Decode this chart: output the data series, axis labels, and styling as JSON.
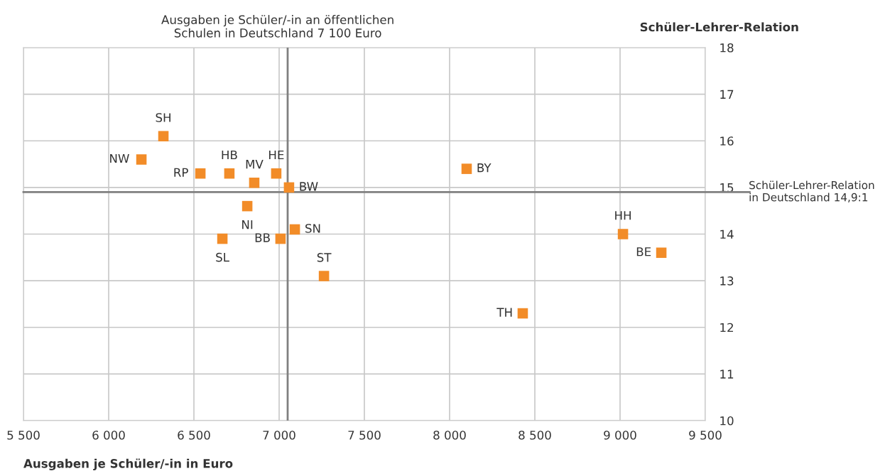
{
  "chart_data": {
    "type": "scatter",
    "xlabel": "Ausgaben je Schüler/-in in Euro",
    "ylabel": "Schüler-Lehrer-Relation",
    "x": [
      6321,
      6192,
      6538,
      6708,
      6983,
      6854,
      7058,
      8100,
      6813,
      7092,
      7008,
      6667,
      7263,
      8429,
      9017,
      9242
    ],
    "series": [
      {
        "color": "#f28c28",
        "values": [
          16.1,
          15.6,
          15.3,
          15.3,
          15.3,
          15.1,
          15.0,
          15.4,
          14.6,
          14.1,
          13.9,
          13.9,
          13.1,
          12.3,
          14.0,
          13.6
        ]
      }
    ],
    "annotations": [
      {
        "text": "SH",
        "x": 6321,
        "y": 16.1
      },
      {
        "text": "NW",
        "x": 6192,
        "y": 15.6
      },
      {
        "text": "RP",
        "x": 6538,
        "y": 15.3
      },
      {
        "text": "HB",
        "x": 6708,
        "y": 15.3
      },
      {
        "text": "HE",
        "x": 6983,
        "y": 15.3
      },
      {
        "text": "MV",
        "x": 6854,
        "y": 15.1
      },
      {
        "text": "BW",
        "x": 7058,
        "y": 15.0
      },
      {
        "text": "BY",
        "x": 8100,
        "y": 15.4
      },
      {
        "text": "NI",
        "x": 6813,
        "y": 14.6
      },
      {
        "text": "SN",
        "x": 7092,
        "y": 14.1
      },
      {
        "text": "BB",
        "x": 7008,
        "y": 13.9
      },
      {
        "text": "SL",
        "x": 6667,
        "y": 13.9
      },
      {
        "text": "ST",
        "x": 7263,
        "y": 13.1
      },
      {
        "text": "TH",
        "x": 8429,
        "y": 12.3
      },
      {
        "text": "HH",
        "x": 9017,
        "y": 14.0
      },
      {
        "text": "BE",
        "x": 9242,
        "y": 13.6
      }
    ],
    "ref_lines": [
      {
        "axis": "x",
        "value": 7050,
        "label": "Ausgaben je Schüler/-in an öffentlichen\nSchulen in Deutschland 7 100 Euro",
        "color": "#808080"
      },
      {
        "axis": "y",
        "value": 14.9,
        "label": "Schüler-Lehrer-Relation\nin Deutschland 14,9:1",
        "color": "#808080"
      }
    ],
    "xlim": [
      5500,
      9500
    ],
    "ylim": [
      10,
      18
    ],
    "xticks": [
      {
        "value": 5500,
        "label": "5 500"
      },
      {
        "value": 6000,
        "label": "6 000"
      },
      {
        "value": 6500,
        "label": "6 500"
      },
      {
        "value": 7000,
        "label": "7 000"
      },
      {
        "value": 7500,
        "label": "7 500"
      },
      {
        "value": 8000,
        "label": "8 000"
      },
      {
        "value": 8500,
        "label": "8 500"
      },
      {
        "value": 9000,
        "label": "9 000"
      },
      {
        "value": 9500,
        "label": "9 500"
      }
    ],
    "yticks": [
      10,
      11,
      12,
      13,
      14,
      15,
      16,
      17,
      18
    ],
    "grid": true,
    "marker": "square"
  }
}
